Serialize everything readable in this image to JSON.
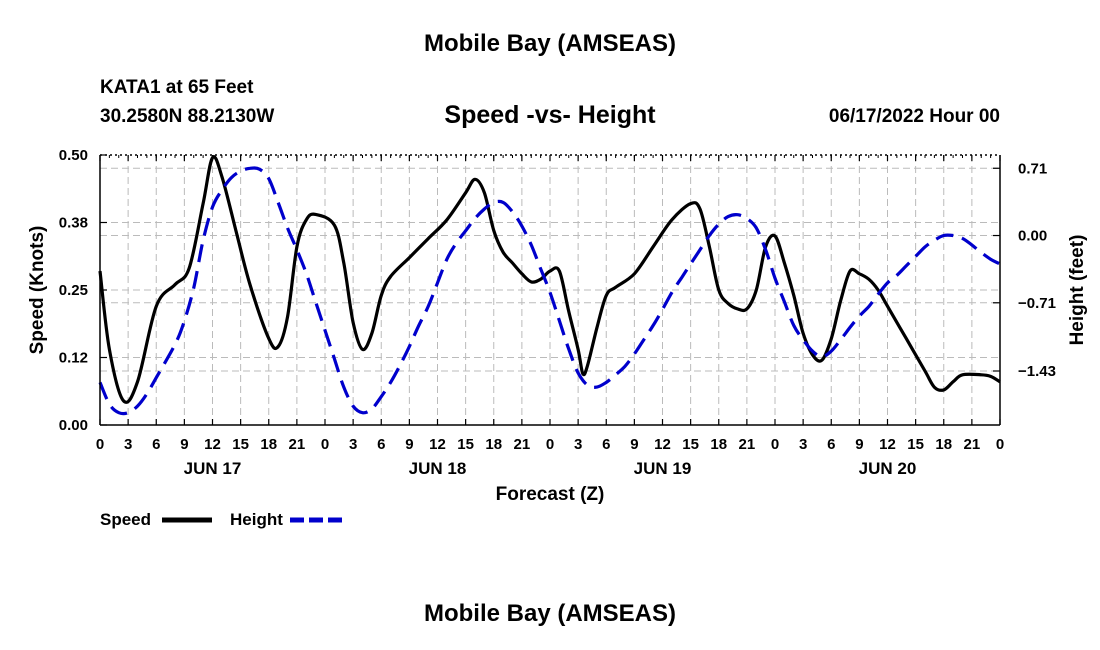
{
  "header": {
    "title": "Mobile Bay (AMSEAS)",
    "station": "KATA1 at 65 Feet",
    "coords": "30.2580N  88.2130W",
    "subtitle": "Speed -vs- Height",
    "run_time": "06/17/2022 Hour 00"
  },
  "footer": {
    "title": "Mobile Bay (AMSEAS)"
  },
  "chart_data": {
    "type": "line",
    "xlabel": "Forecast (Z)",
    "ylabel_left": "Speed (Knots)",
    "ylabel_right": "Height (feet)",
    "x_range_hours": [
      0,
      96
    ],
    "x_tick_step_hours": 3,
    "x_tick_labels": [
      "0",
      "3",
      "6",
      "9",
      "12",
      "15",
      "18",
      "21",
      "0",
      "3",
      "6",
      "9",
      "12",
      "15",
      "18",
      "21",
      "0",
      "3",
      "6",
      "9",
      "12",
      "15",
      "18",
      "21",
      "0",
      "3",
      "6",
      "9",
      "12",
      "15",
      "18",
      "21",
      "0"
    ],
    "date_labels": [
      {
        "hour": 12,
        "label": "JUN 17"
      },
      {
        "hour": 36,
        "label": "JUN 18"
      },
      {
        "hour": 60,
        "label": "JUN 19"
      },
      {
        "hour": 84,
        "label": "JUN 20"
      }
    ],
    "y_left": {
      "range": [
        0,
        0.5
      ],
      "ticks": [
        "0.00",
        "0.12",
        "0.25",
        "0.38",
        "0.50"
      ]
    },
    "y_right": {
      "range": [
        -2.0,
        0.85
      ],
      "ticks": [
        {
          "value": 0.71,
          "label": "0.71"
        },
        {
          "value": 0.0,
          "label": "0.00"
        },
        {
          "value": -0.71,
          "label": "−0.71"
        },
        {
          "value": -1.43,
          "label": "−1.43"
        }
      ]
    },
    "grid": true,
    "legend_position": "bottom-left",
    "series": [
      {
        "name": "Speed",
        "axis": "left",
        "color": "#000000",
        "style": "solid",
        "points": [
          [
            0,
            0.285
          ],
          [
            1,
            0.14
          ],
          [
            2.5,
            0.045
          ],
          [
            4,
            0.08
          ],
          [
            6,
            0.22
          ],
          [
            8,
            0.26
          ],
          [
            9.5,
            0.29
          ],
          [
            11,
            0.41
          ],
          [
            12,
            0.495
          ],
          [
            13,
            0.46
          ],
          [
            14.5,
            0.36
          ],
          [
            16,
            0.26
          ],
          [
            18,
            0.16
          ],
          [
            19,
            0.145
          ],
          [
            20,
            0.2
          ],
          [
            21,
            0.33
          ],
          [
            22,
            0.38
          ],
          [
            23,
            0.39
          ],
          [
            25,
            0.37
          ],
          [
            26,
            0.3
          ],
          [
            27,
            0.19
          ],
          [
            28,
            0.14
          ],
          [
            29,
            0.17
          ],
          [
            30,
            0.24
          ],
          [
            31,
            0.275
          ],
          [
            33,
            0.31
          ],
          [
            35,
            0.345
          ],
          [
            37,
            0.38
          ],
          [
            39,
            0.43
          ],
          [
            40,
            0.455
          ],
          [
            41,
            0.43
          ],
          [
            42,
            0.36
          ],
          [
            43,
            0.32
          ],
          [
            44,
            0.3
          ],
          [
            45,
            0.28
          ],
          [
            46,
            0.265
          ],
          [
            47,
            0.27
          ],
          [
            48,
            0.285
          ],
          [
            49,
            0.285
          ],
          [
            50,
            0.21
          ],
          [
            51,
            0.14
          ],
          [
            51.5,
            0.095
          ],
          [
            52,
            0.11
          ],
          [
            53,
            0.18
          ],
          [
            54,
            0.24
          ],
          [
            55,
            0.255
          ],
          [
            57,
            0.28
          ],
          [
            59,
            0.33
          ],
          [
            61,
            0.38
          ],
          [
            63,
            0.41
          ],
          [
            64,
            0.4
          ],
          [
            65,
            0.33
          ],
          [
            66,
            0.25
          ],
          [
            67,
            0.225
          ],
          [
            68,
            0.215
          ],
          [
            69,
            0.215
          ],
          [
            70,
            0.25
          ],
          [
            71,
            0.33
          ],
          [
            72,
            0.35
          ],
          [
            73,
            0.3
          ],
          [
            74,
            0.24
          ],
          [
            75,
            0.17
          ],
          [
            76,
            0.13
          ],
          [
            77,
            0.12
          ],
          [
            78,
            0.16
          ],
          [
            79,
            0.23
          ],
          [
            80,
            0.285
          ],
          [
            81,
            0.28
          ],
          [
            82,
            0.27
          ],
          [
            83,
            0.25
          ],
          [
            84,
            0.22
          ],
          [
            86,
            0.16
          ],
          [
            88,
            0.1
          ],
          [
            89,
            0.07
          ],
          [
            90,
            0.065
          ],
          [
            91,
            0.08
          ],
          [
            92,
            0.093
          ],
          [
            94,
            0.093
          ],
          [
            95,
            0.09
          ],
          [
            96,
            0.08
          ]
        ]
      },
      {
        "name": "Height",
        "axis": "right",
        "color": "#0000cc",
        "style": "dashed",
        "points": [
          [
            0,
            -1.55
          ],
          [
            1,
            -1.78
          ],
          [
            2,
            -1.87
          ],
          [
            3,
            -1.87
          ],
          [
            4,
            -1.8
          ],
          [
            5,
            -1.67
          ],
          [
            6,
            -1.5
          ],
          [
            8,
            -1.15
          ],
          [
            9,
            -0.9
          ],
          [
            10,
            -0.55
          ],
          [
            11,
            -0.05
          ],
          [
            12,
            0.3
          ],
          [
            13,
            0.48
          ],
          [
            14,
            0.61
          ],
          [
            15,
            0.68
          ],
          [
            16,
            0.71
          ],
          [
            17,
            0.7
          ],
          [
            18,
            0.6
          ],
          [
            19,
            0.35
          ],
          [
            20,
            0.08
          ],
          [
            21,
            -0.15
          ],
          [
            22,
            -0.4
          ],
          [
            23,
            -0.7
          ],
          [
            24,
            -1.0
          ],
          [
            25,
            -1.3
          ],
          [
            26,
            -1.6
          ],
          [
            27,
            -1.8
          ],
          [
            28,
            -1.87
          ],
          [
            29,
            -1.83
          ],
          [
            30,
            -1.7
          ],
          [
            31,
            -1.55
          ],
          [
            32,
            -1.37
          ],
          [
            33,
            -1.17
          ],
          [
            34,
            -0.95
          ],
          [
            35,
            -0.75
          ],
          [
            36,
            -0.5
          ],
          [
            37,
            -0.25
          ],
          [
            38,
            -0.08
          ],
          [
            39,
            0.05
          ],
          [
            40,
            0.18
          ],
          [
            41,
            0.28
          ],
          [
            42,
            0.35
          ],
          [
            43,
            0.35
          ],
          [
            44,
            0.25
          ],
          [
            45,
            0.1
          ],
          [
            46,
            -0.1
          ],
          [
            47,
            -0.35
          ],
          [
            48,
            -0.6
          ],
          [
            49,
            -0.9
          ],
          [
            50,
            -1.2
          ],
          [
            51,
            -1.45
          ],
          [
            52,
            -1.58
          ],
          [
            53,
            -1.6
          ],
          [
            54,
            -1.55
          ],
          [
            55,
            -1.47
          ],
          [
            56,
            -1.38
          ],
          [
            57,
            -1.25
          ],
          [
            58,
            -1.1
          ],
          [
            59,
            -0.95
          ],
          [
            60,
            -0.78
          ],
          [
            61,
            -0.6
          ],
          [
            62,
            -0.45
          ],
          [
            63,
            -0.3
          ],
          [
            64,
            -0.15
          ],
          [
            65,
            0.0
          ],
          [
            66,
            0.12
          ],
          [
            67,
            0.2
          ],
          [
            68,
            0.22
          ],
          [
            69,
            0.18
          ],
          [
            70,
            0.08
          ],
          [
            71,
            -0.15
          ],
          [
            72,
            -0.45
          ],
          [
            73,
            -0.7
          ],
          [
            74,
            -0.95
          ],
          [
            75,
            -1.1
          ],
          [
            76,
            -1.22
          ],
          [
            77,
            -1.28
          ],
          [
            78,
            -1.22
          ],
          [
            79,
            -1.1
          ],
          [
            80,
            -0.97
          ],
          [
            81,
            -0.85
          ],
          [
            82,
            -0.75
          ],
          [
            83,
            -0.62
          ],
          [
            84,
            -0.5
          ],
          [
            85,
            -0.42
          ],
          [
            86,
            -0.32
          ],
          [
            87,
            -0.22
          ],
          [
            88,
            -0.12
          ],
          [
            89,
            -0.05
          ],
          [
            90,
            0.0
          ],
          [
            91,
            0.0
          ],
          [
            92,
            -0.03
          ],
          [
            93,
            -0.1
          ],
          [
            94,
            -0.18
          ],
          [
            95,
            -0.25
          ],
          [
            96,
            -0.3
          ]
        ]
      }
    ]
  }
}
